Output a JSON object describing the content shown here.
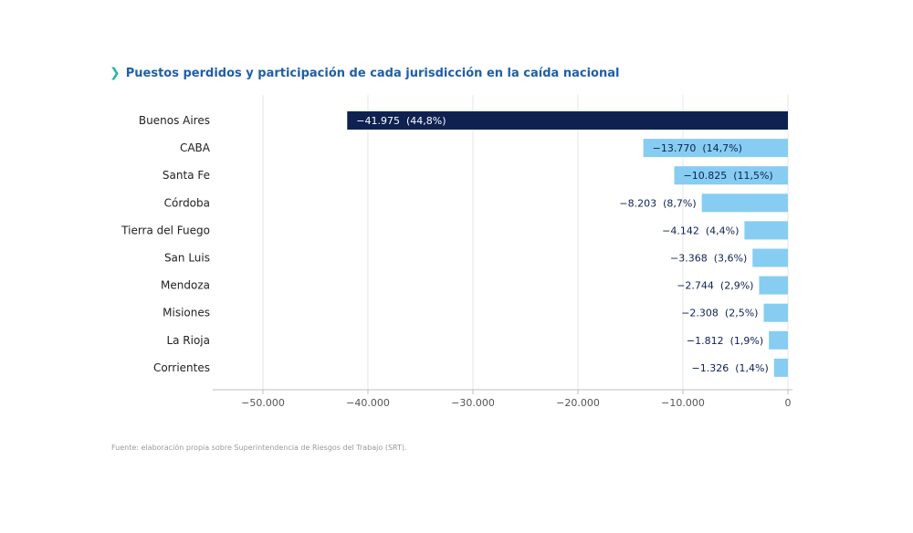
{
  "title": "Puestos perdidos y participación de cada jurisdicción en la caída nacional",
  "source": "Fuente: elaboración propia sobre Superintendencia de Riesgos del Trabajo (SRT).",
  "colors": {
    "title": "#1f5fa8",
    "chevron": "#2bb5a0",
    "highlight_bar": "#0e2151",
    "bar": "#86cdf1",
    "label_dark": "#0e2151",
    "label_light": "#ffffff",
    "grid": "#e6e6e6",
    "axis_text": "#555555"
  },
  "chart_data": {
    "type": "bar",
    "orientation": "horizontal",
    "title": "Puestos perdidos y participación de cada jurisdicción en la caída nacional",
    "categories": [
      "Buenos Aires",
      "CABA",
      "Santa Fe",
      "Córdoba",
      "Tierra del Fuego",
      "San Luis",
      "Mendoza",
      "Misiones",
      "La Rioja",
      "Corrientes"
    ],
    "values": [
      -41975,
      -13770,
      -10825,
      -8203,
      -4142,
      -3368,
      -2744,
      -2308,
      -1812,
      -1326
    ],
    "data_labels": [
      "−41.975  (44,8%)",
      "−13.770  (14,7%)",
      "−10.825  (11,5%)",
      "−8.203  (8,7%)",
      "−4.142  (4,4%)",
      "−3.368  (3,6%)",
      "−2.744  (2,9%)",
      "−2.308  (2,5%)",
      "−1.812  (1,9%)",
      "−1.326  (1,4%)"
    ],
    "highlight_category": "Buenos Aires",
    "x_ticks": [
      -50000,
      -40000,
      -30000,
      -20000,
      -10000,
      0
    ],
    "x_tick_labels": [
      "−50.000",
      "−40.000",
      "−30.000",
      "−20.000",
      "−10.000",
      "0"
    ],
    "xlim": [
      -50000,
      0
    ],
    "grid": true,
    "legend": "none"
  }
}
